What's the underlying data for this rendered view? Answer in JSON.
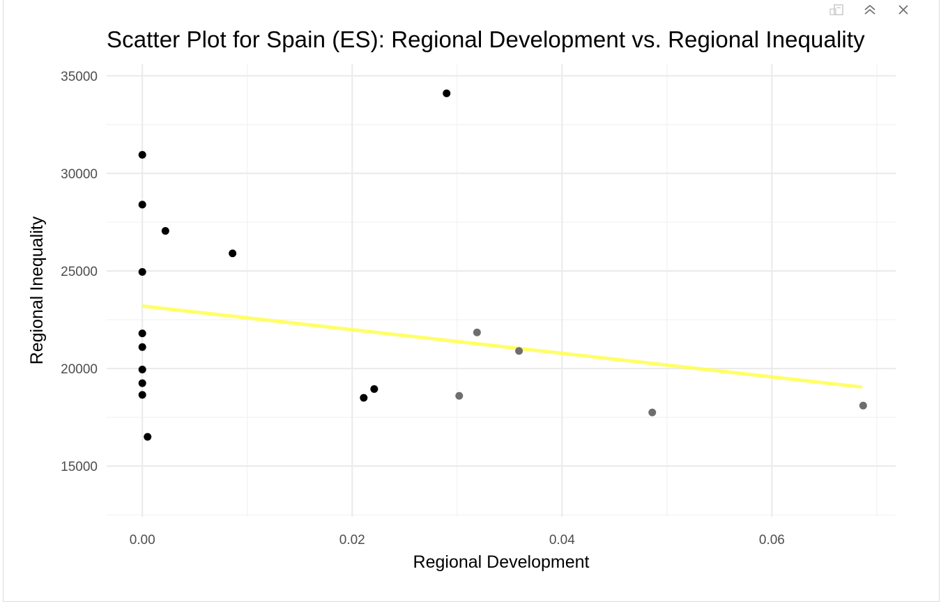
{
  "toolbar": {
    "icons": [
      "export-icon",
      "collapse-icon",
      "close-icon"
    ]
  },
  "chart_data": {
    "type": "scatter",
    "title": "Scatter Plot for Spain (ES): Regional Development vs. Regional Inequality",
    "xlabel": "Regional Development",
    "ylabel": "Regional Inequality",
    "xlim": [
      -0.0034,
      0.0718
    ],
    "ylim": [
      12400,
      35600
    ],
    "x_ticks": [
      0.0,
      0.02,
      0.04,
      0.06
    ],
    "x_tick_labels": [
      "0.00",
      "0.02",
      "0.04",
      "0.06"
    ],
    "y_ticks": [
      15000,
      20000,
      25000,
      30000,
      35000
    ],
    "y_tick_labels": [
      "15000",
      "20000",
      "25000",
      "30000",
      "35000"
    ],
    "grid": true,
    "series": [
      {
        "color": "#000000",
        "points": [
          {
            "x": 0.0,
            "y": 30950
          },
          {
            "x": 0.0,
            "y": 28400
          },
          {
            "x": 0.0022,
            "y": 27050
          },
          {
            "x": 0.0086,
            "y": 25900
          },
          {
            "x": 0.0,
            "y": 24950
          },
          {
            "x": 0.0,
            "y": 21800
          },
          {
            "x": 0.0,
            "y": 21100
          },
          {
            "x": 0.0,
            "y": 19950
          },
          {
            "x": 0.0,
            "y": 19250
          },
          {
            "x": 0.0,
            "y": 18650
          },
          {
            "x": 0.0005,
            "y": 16500
          },
          {
            "x": 0.029,
            "y": 34100
          },
          {
            "x": 0.0211,
            "y": 18500
          },
          {
            "x": 0.0221,
            "y": 18950
          }
        ]
      },
      {
        "color": "#6e6e6e",
        "points": [
          {
            "x": 0.0319,
            "y": 21850
          },
          {
            "x": 0.0359,
            "y": 20900
          },
          {
            "x": 0.0302,
            "y": 18600
          },
          {
            "x": 0.0486,
            "y": 17750
          },
          {
            "x": 0.0687,
            "y": 18100
          }
        ]
      }
    ],
    "trend_line": {
      "color": "#ffff4d",
      "x": [
        0.0,
        0.0686
      ],
      "y": [
        23200,
        19050
      ]
    }
  }
}
